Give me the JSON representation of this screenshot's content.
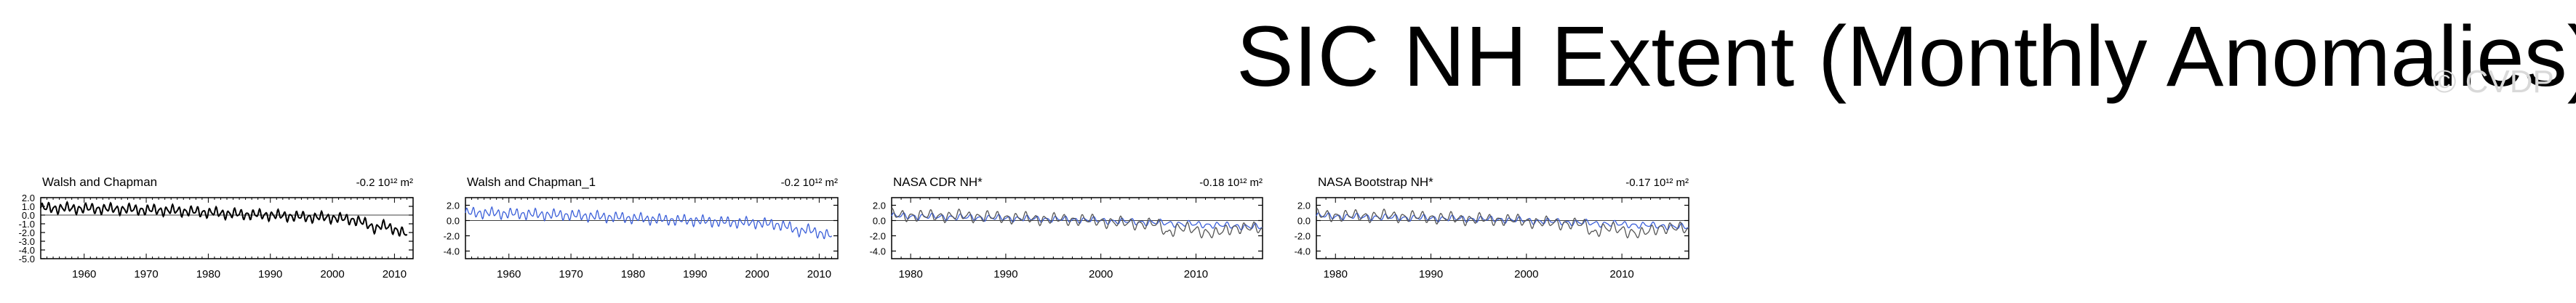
{
  "title": "SIC NH Extent (Monthly Anomalies)",
  "watermark": "© CVDP",
  "colors": {
    "observed": "#000000",
    "model": "#3b5fd9",
    "reference": "#555555"
  },
  "chart_data": [
    {
      "type": "line",
      "title": "Walsh and Chapman",
      "stat": "-0.2 10¹² m²",
      "xlim": [
        1953,
        2013
      ],
      "xticks": [
        1960,
        1970,
        1980,
        1990,
        2000,
        2010
      ],
      "ylim": [
        -5.0,
        2.0
      ],
      "yticks": [
        "2.0",
        "1.0",
        "0.0",
        "-1.0",
        "-2.0",
        "-3.0",
        "-4.0",
        "-5.0"
      ],
      "ytick_values": [
        2.0,
        1.0,
        0.0,
        -1.0,
        -2.0,
        -3.0,
        -4.0,
        -5.0
      ],
      "series": [
        {
          "role": "observed",
          "x": [
            1953,
            1956,
            1960,
            1965,
            1970,
            1975,
            1980,
            1985,
            1990,
            1995,
            2000,
            2004,
            2007,
            2008,
            2010,
            2012
          ],
          "trend": [
            0.8,
            0.8,
            0.75,
            0.7,
            0.6,
            0.5,
            0.3,
            0.1,
            0.0,
            -0.2,
            -0.3,
            -0.6,
            -1.5,
            -1.2,
            -1.6,
            -2.2
          ],
          "amplitude": 0.7
        }
      ]
    },
    {
      "type": "line",
      "title": "Walsh and Chapman_1",
      "stat": "-0.2 10¹² m²",
      "xlim": [
        1953,
        2013
      ],
      "xticks": [
        1960,
        1970,
        1980,
        1990,
        2000,
        2010
      ],
      "ylim": [
        -5.0,
        3.0
      ],
      "yticks": [
        "2.0",
        "0.0",
        "-2.0",
        "-4.0"
      ],
      "ytick_values": [
        2.0,
        0.0,
        -2.0,
        -4.0
      ],
      "series": [
        {
          "role": "model",
          "x": [
            1953,
            1956,
            1960,
            1965,
            1970,
            1975,
            1980,
            1985,
            1990,
            1995,
            2000,
            2004,
            2007,
            2008,
            2010,
            2012
          ],
          "trend": [
            1.0,
            1.0,
            0.9,
            0.8,
            0.7,
            0.5,
            0.3,
            0.1,
            0.0,
            -0.2,
            -0.3,
            -0.6,
            -1.4,
            -1.2,
            -1.6,
            -2.0
          ],
          "amplitude": 0.8
        }
      ]
    },
    {
      "type": "line",
      "title": "NASA CDR NH*",
      "stat": "-0.18 10¹² m²",
      "xlim": [
        1978,
        2017
      ],
      "xticks": [
        1980,
        1990,
        2000,
        2010
      ],
      "ylim": [
        -5.0,
        3.0
      ],
      "yticks": [
        "2.0",
        "0.0",
        "-2.0",
        "-4.0"
      ],
      "ytick_values": [
        2.0,
        0.0,
        -2.0,
        -4.0
      ],
      "series": [
        {
          "role": "model",
          "x": [
            1978,
            1982,
            1986,
            1990,
            1994,
            1998,
            2002,
            2006,
            2010,
            2014,
            2017
          ],
          "trend": [
            0.6,
            0.5,
            0.4,
            0.3,
            0.2,
            0.1,
            -0.1,
            -0.3,
            -0.5,
            -0.7,
            -0.9
          ],
          "amplitude": 0.5
        },
        {
          "role": "reference",
          "x": [
            1978,
            1982,
            1986,
            1990,
            1994,
            1998,
            2002,
            2006,
            2007,
            2008,
            2010,
            2012,
            2014,
            2017
          ],
          "trend": [
            0.7,
            0.6,
            0.6,
            0.4,
            0.2,
            0.1,
            -0.3,
            -0.5,
            -1.6,
            -1.0,
            -1.2,
            -1.8,
            -0.9,
            -1.1
          ],
          "amplitude": 0.9
        }
      ]
    },
    {
      "type": "line",
      "title": "NASA Bootstrap NH*",
      "stat": "-0.17 10¹² m²",
      "xlim": [
        1978,
        2017
      ],
      "xticks": [
        1980,
        1990,
        2000,
        2010
      ],
      "ylim": [
        -5.0,
        3.0
      ],
      "yticks": [
        "2.0",
        "0.0",
        "-2.0",
        "-4.0"
      ],
      "ytick_values": [
        2.0,
        0.0,
        -2.0,
        -4.0
      ],
      "series": [
        {
          "role": "model",
          "x": [
            1978,
            1982,
            1986,
            1990,
            1994,
            1998,
            2002,
            2006,
            2010,
            2014,
            2017
          ],
          "trend": [
            0.6,
            0.5,
            0.4,
            0.3,
            0.2,
            0.1,
            -0.1,
            -0.3,
            -0.5,
            -0.7,
            -0.9
          ],
          "amplitude": 0.5
        },
        {
          "role": "reference",
          "x": [
            1978,
            1982,
            1986,
            1990,
            1994,
            1998,
            2002,
            2006,
            2007,
            2008,
            2010,
            2012,
            2014,
            2017
          ],
          "trend": [
            0.7,
            0.6,
            0.6,
            0.4,
            0.2,
            0.1,
            -0.3,
            -0.5,
            -1.6,
            -1.0,
            -1.2,
            -1.8,
            -0.9,
            -1.1
          ],
          "amplitude": 0.9
        }
      ]
    }
  ]
}
